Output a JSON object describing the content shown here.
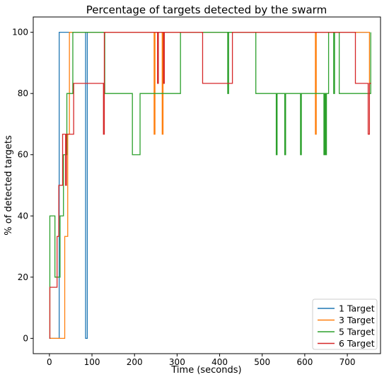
{
  "chart_data": {
    "type": "line",
    "title": "Percentage of targets detected by the swarm",
    "xlabel": "Time (seconds)",
    "ylabel": "% of detected targets",
    "xlim": [
      -38,
      778
    ],
    "ylim": [
      -5,
      105
    ],
    "xticks": [
      0,
      100,
      200,
      300,
      400,
      500,
      600,
      700
    ],
    "yticks": [
      0,
      20,
      40,
      60,
      80,
      100
    ],
    "grid": false,
    "legend_position": "lower-right",
    "series": [
      {
        "name": "1 Target",
        "color": "#1f77b4",
        "step": true,
        "points": [
          [
            0,
            0
          ],
          [
            23,
            0
          ],
          [
            23,
            100
          ],
          [
            85,
            100
          ],
          [
            85,
            0
          ],
          [
            89,
            0
          ],
          [
            89,
            100
          ],
          [
            748,
            100
          ]
        ]
      },
      {
        "name": "3 Target",
        "color": "#ff7f0e",
        "step": true,
        "points": [
          [
            0,
            0
          ],
          [
            36,
            0
          ],
          [
            36,
            33.3
          ],
          [
            43,
            33.3
          ],
          [
            43,
            66.7
          ],
          [
            47,
            66.7
          ],
          [
            47,
            100
          ],
          [
            246,
            100
          ],
          [
            246,
            66.7
          ],
          [
            248,
            66.7
          ],
          [
            248,
            100
          ],
          [
            265,
            100
          ],
          [
            265,
            66.7
          ],
          [
            267,
            66.7
          ],
          [
            267,
            100
          ],
          [
            625,
            100
          ],
          [
            625,
            66.7
          ],
          [
            627,
            66.7
          ],
          [
            627,
            100
          ],
          [
            752,
            100
          ],
          [
            752,
            83.3
          ],
          [
            756,
            83.3
          ]
        ]
      },
      {
        "name": "5 Target",
        "color": "#2ca02c",
        "step": true,
        "points": [
          [
            0,
            0
          ],
          [
            1,
            0
          ],
          [
            1,
            40
          ],
          [
            13,
            40
          ],
          [
            13,
            20
          ],
          [
            25,
            20
          ],
          [
            25,
            40
          ],
          [
            33,
            40
          ],
          [
            33,
            60
          ],
          [
            41,
            60
          ],
          [
            41,
            80
          ],
          [
            55,
            80
          ],
          [
            55,
            100
          ],
          [
            130,
            100
          ],
          [
            130,
            80
          ],
          [
            195,
            80
          ],
          [
            195,
            60
          ],
          [
            213,
            60
          ],
          [
            213,
            80
          ],
          [
            308,
            80
          ],
          [
            308,
            100
          ],
          [
            419,
            100
          ],
          [
            419,
            80
          ],
          [
            421,
            80
          ],
          [
            421,
            100
          ],
          [
            485,
            100
          ],
          [
            485,
            80
          ],
          [
            533,
            80
          ],
          [
            533,
            60
          ],
          [
            535,
            60
          ],
          [
            535,
            80
          ],
          [
            553,
            80
          ],
          [
            553,
            60
          ],
          [
            555,
            60
          ],
          [
            555,
            80
          ],
          [
            590,
            80
          ],
          [
            590,
            60
          ],
          [
            592,
            60
          ],
          [
            592,
            80
          ],
          [
            645,
            80
          ],
          [
            645,
            60
          ],
          [
            647,
            60
          ],
          [
            647,
            80
          ],
          [
            649,
            80
          ],
          [
            649,
            60
          ],
          [
            651,
            60
          ],
          [
            651,
            80
          ],
          [
            656,
            80
          ],
          [
            656,
            100
          ],
          [
            668,
            100
          ],
          [
            668,
            80
          ],
          [
            670,
            80
          ],
          [
            670,
            100
          ],
          [
            681,
            100
          ],
          [
            681,
            80
          ],
          [
            755,
            80
          ],
          [
            755,
            100
          ]
        ]
      },
      {
        "name": "6 Target",
        "color": "#d62728",
        "step": true,
        "points": [
          [
            0,
            0
          ],
          [
            1,
            0
          ],
          [
            1,
            16.7
          ],
          [
            18,
            16.7
          ],
          [
            18,
            33.3
          ],
          [
            22,
            33.3
          ],
          [
            22,
            50
          ],
          [
            31,
            50
          ],
          [
            31,
            66.7
          ],
          [
            38,
            66.7
          ],
          [
            38,
            50
          ],
          [
            40,
            50
          ],
          [
            40,
            66.7
          ],
          [
            57,
            66.7
          ],
          [
            57,
            83.3
          ],
          [
            127,
            83.3
          ],
          [
            127,
            66.7
          ],
          [
            129,
            66.7
          ],
          [
            129,
            100
          ],
          [
            254,
            100
          ],
          [
            254,
            83.3
          ],
          [
            256,
            83.3
          ],
          [
            256,
            100
          ],
          [
            268,
            100
          ],
          [
            268,
            83.3
          ],
          [
            270,
            83.3
          ],
          [
            270,
            100
          ],
          [
            360,
            100
          ],
          [
            360,
            83.3
          ],
          [
            430,
            83.3
          ],
          [
            430,
            100
          ],
          [
            719,
            100
          ],
          [
            719,
            83.3
          ],
          [
            749,
            83.3
          ],
          [
            749,
            66.7
          ],
          [
            752,
            66.7
          ],
          [
            752,
            83.3
          ],
          [
            756,
            83.3
          ]
        ]
      }
    ]
  }
}
